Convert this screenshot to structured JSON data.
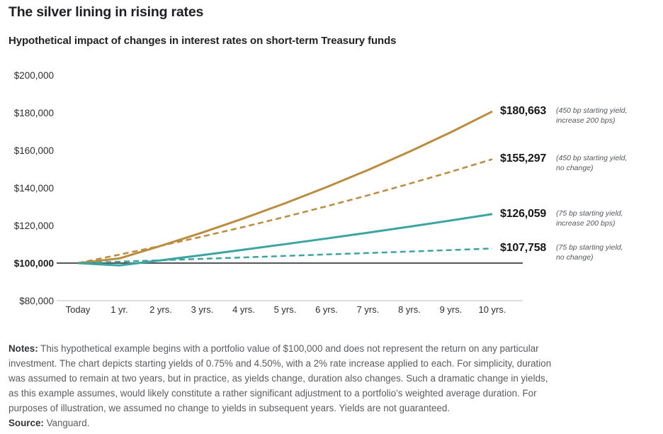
{
  "chart_data": {
    "type": "line",
    "title": "The silver lining in rising rates",
    "subtitle": "Hypothetical impact of changes in interest rates on short-term Treasury funds",
    "x_unit": "years",
    "x": [
      0,
      1,
      2,
      3,
      4,
      5,
      6,
      7,
      8,
      9,
      10
    ],
    "x_tick_labels": [
      "Today",
      "1 yr.",
      "2 yrs.",
      "3 yrs.",
      "4 yrs.",
      "5 yrs.",
      "6 yrs.",
      "7 yrs.",
      "8 yrs.",
      "9 yrs.",
      "10 yrs."
    ],
    "ylim": [
      80000,
      200000
    ],
    "y_ticks": [
      200000,
      180000,
      160000,
      140000,
      120000,
      100000,
      80000
    ],
    "y_tick_labels": [
      "$200,000",
      "$180,000",
      "$160,000",
      "$140,000",
      "$120,000",
      "$100,000",
      "$80,000"
    ],
    "baseline_value": 100000,
    "bottom_line_value": 80000,
    "grid": "baseline-and-bottom-only",
    "legend_position": "right",
    "series": [
      {
        "name": "450 bp starting yield, increase 200 bps",
        "color": "#bc8c3e",
        "style": "solid",
        "values": [
          100000,
          102500,
          109162,
          116258,
          123814,
          131862,
          140433,
          149561,
          159283,
          169636,
          180663
        ],
        "end_label": "$180,663",
        "end_note_lines": [
          "(450 bp starting yield,",
          "increase 200 bps)"
        ]
      },
      {
        "name": "450 bp starting yield, no change",
        "color": "#bc8c3e",
        "style": "dashed",
        "values": [
          100000,
          104500,
          109203,
          114117,
          119252,
          124618,
          130226,
          136086,
          142210,
          148610,
          155297
        ],
        "end_label": "$155,297",
        "end_note_lines": [
          "(450 bp starting yield,",
          "no change)"
        ]
      },
      {
        "name": "75 bp starting yield, increase 200 bps",
        "color": "#3ca5a0",
        "style": "solid",
        "values": [
          100000,
          98750,
          101466,
          104256,
          107123,
          110069,
          113096,
          116206,
          119402,
          122685,
          126059
        ],
        "end_label": "$126,059",
        "end_note_lines": [
          "(75 bp starting yield,",
          "increase 200 bps)"
        ]
      },
      {
        "name": "75 bp starting yield, no change",
        "color": "#3ca5a0",
        "style": "dashed",
        "values": [
          100000,
          100750,
          101506,
          102267,
          103034,
          103807,
          104585,
          105370,
          106160,
          106956,
          107758
        ],
        "end_label": "$107,758",
        "end_note_lines": [
          "(75 bp starting yield,",
          "no change)"
        ]
      }
    ]
  },
  "colors": {
    "gold": "#bc8c3e",
    "teal": "#3ca5a0",
    "baseline_line": "#55565a",
    "bottom_line": "#c9c9c9"
  },
  "notes": {
    "label": "Notes:",
    "line1": " This hypothetical example begins with a portfolio value of $100,000 and does not represent the return on any particular",
    "line2": "investment. The chart depicts starting yields of 0.75% and 4.50%, with a 2% rate increase applied to each. For simplicity, duration",
    "line3": "was assumed to remain at two years, but in practice, as yields change, duration also changes. Such a dramatic change in yields,",
    "line4": "as this example assumes, would likely constitute a rather significant adjustment to a portfolio’s weighted average duration. For",
    "line5": "purposes of illustration, we assumed no change to yields in subsequent years. Yields are not guaranteed.",
    "source_label": "Source:",
    "source_text": " Vanguard."
  }
}
